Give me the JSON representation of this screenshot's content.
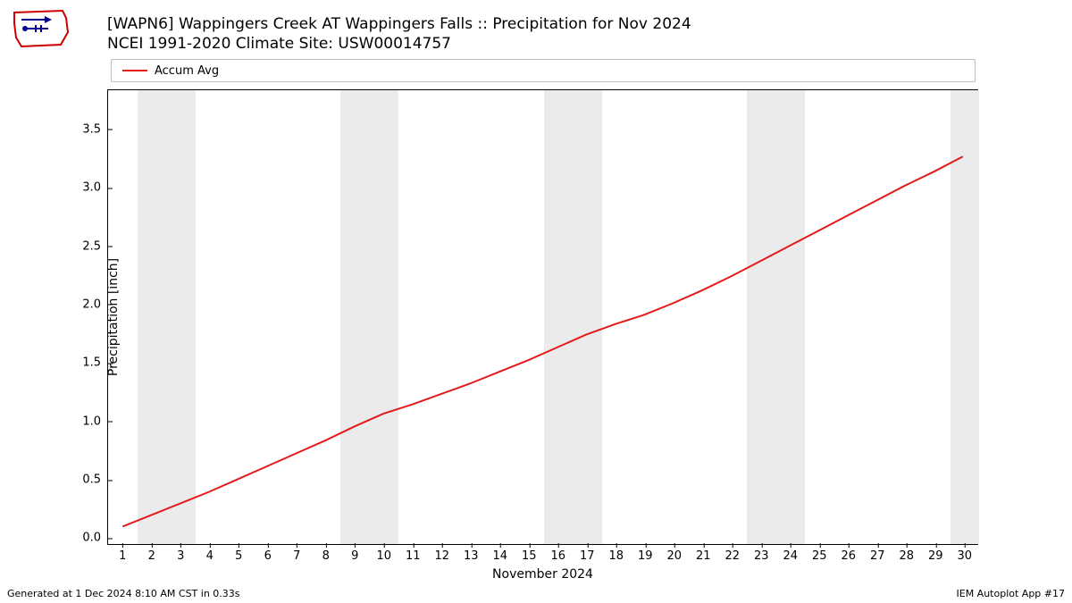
{
  "title_line1": "[WAPN6] Wappingers Creek  AT Wappingers Falls :: Precipitation for Nov 2024",
  "title_line2": "NCEI 1991-2020 Climate Site: USW00014757",
  "legend": {
    "label": "Accum Avg",
    "color": "#e41a1c",
    "line_width": 2
  },
  "chart": {
    "type": "line",
    "background_color": "#ffffff",
    "band_color": "#ebebeb",
    "axis_color": "#000000",
    "tick_fontsize": 13,
    "label_fontsize": 14,
    "title_fontsize": 17,
    "xlabel": "November 2024",
    "ylabel": "Precipitation [inch]",
    "xlim": [
      0.5,
      30.5
    ],
    "ylim": [
      -0.05,
      3.85
    ],
    "ytick_step": 0.5,
    "yticks": [
      0.0,
      0.5,
      1.0,
      1.5,
      2.0,
      2.5,
      3.0,
      3.5
    ],
    "xticks": [
      1,
      2,
      3,
      4,
      5,
      6,
      7,
      8,
      9,
      10,
      11,
      12,
      13,
      14,
      15,
      16,
      17,
      18,
      19,
      20,
      21,
      22,
      23,
      24,
      25,
      26,
      27,
      28,
      29,
      30
    ],
    "weekend_bands": [
      [
        1.5,
        3.5
      ],
      [
        8.5,
        10.5
      ],
      [
        15.5,
        17.5
      ],
      [
        22.5,
        24.5
      ],
      [
        29.5,
        30.5
      ]
    ],
    "series": {
      "x": [
        1,
        2,
        3,
        4,
        5,
        6,
        7,
        8,
        9,
        10,
        11,
        12,
        13,
        14,
        15,
        16,
        17,
        18,
        19,
        20,
        21,
        22,
        23,
        24,
        25,
        26,
        27,
        28,
        29,
        30
      ],
      "y": [
        0.1,
        0.2,
        0.3,
        0.4,
        0.51,
        0.62,
        0.73,
        0.84,
        0.96,
        1.07,
        1.15,
        1.24,
        1.33,
        1.43,
        1.53,
        1.64,
        1.75,
        1.84,
        1.92,
        2.02,
        2.13,
        2.25,
        2.38,
        2.51,
        2.64,
        2.77,
        2.9,
        3.03,
        3.15,
        3.28
      ],
      "color": "#e41a1c",
      "line_width": 2
    }
  },
  "footer_left": "Generated at 1 Dec 2024 8:10 AM CST in 0.33s",
  "footer_right": "IEM Autoplot App #17"
}
